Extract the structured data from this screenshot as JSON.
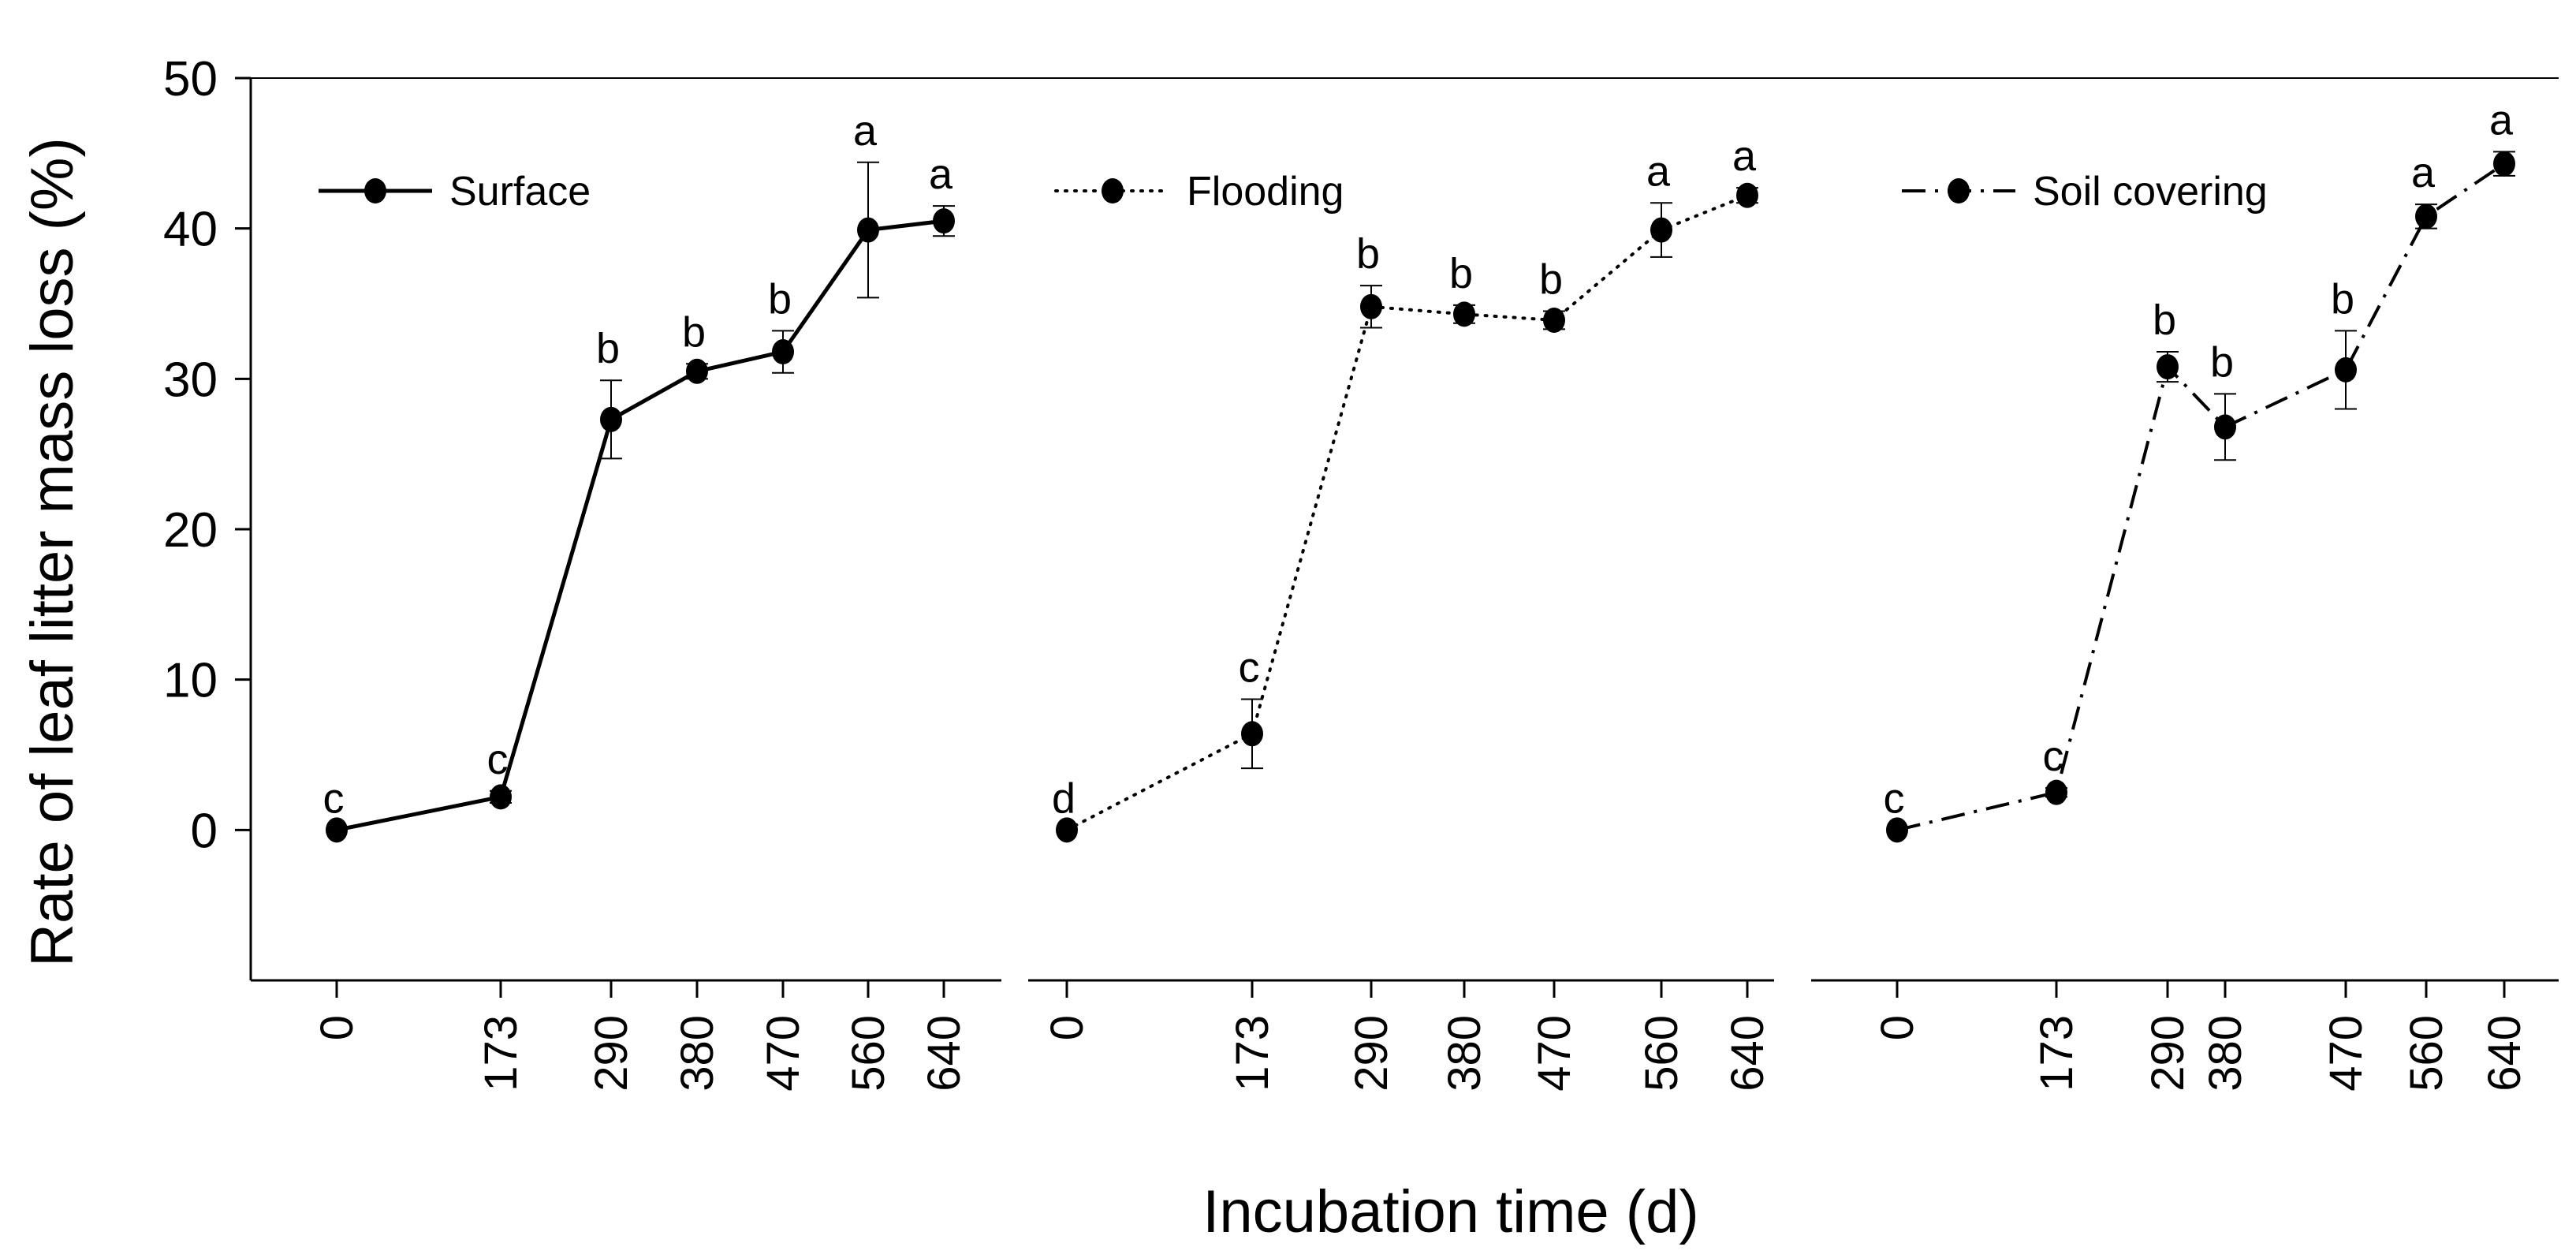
{
  "chart_data": {
    "type": "line",
    "ylabel": "Rate of leaf litter mass loss (%)",
    "xlabel": "Incubation time (d)",
    "ylim": [
      -10,
      50
    ],
    "yticks": [
      0,
      10,
      20,
      30,
      40,
      50
    ],
    "x": [
      0,
      173,
      290,
      380,
      470,
      560,
      640
    ],
    "x_tick_labels": [
      "0",
      "173",
      "290",
      "380",
      "470",
      "560",
      "640"
    ],
    "panels": [
      {
        "name": "Surface",
        "line_style": "solid",
        "values": [
          0,
          2.2,
          27.3,
          30.5,
          31.8,
          39.9,
          40.5
        ],
        "errors": [
          0,
          0.4,
          2.6,
          0.5,
          1.4,
          4.5,
          1.0
        ],
        "letters": [
          "c",
          "c",
          "b",
          "b",
          "b",
          "a",
          "a"
        ]
      },
      {
        "name": "Flooding",
        "line_style": "dotted",
        "values": [
          0,
          6.4,
          34.8,
          34.3,
          33.9,
          39.9,
          42.2
        ],
        "errors": [
          0,
          2.3,
          1.4,
          0.6,
          0.6,
          1.8,
          0.5
        ],
        "letters": [
          "d",
          "c",
          "b",
          "b",
          "b",
          "a",
          "a"
        ]
      },
      {
        "name": "Soil covering",
        "line_style": "dashdot",
        "values": [
          0,
          2.5,
          30.8,
          26.8,
          30.6,
          40.8,
          44.3
        ],
        "errors": [
          0,
          0.3,
          1.0,
          2.2,
          2.6,
          0.8,
          0.8
        ],
        "letters": [
          "c",
          "c",
          "b",
          "b",
          "b",
          "a",
          "a"
        ]
      }
    ]
  }
}
